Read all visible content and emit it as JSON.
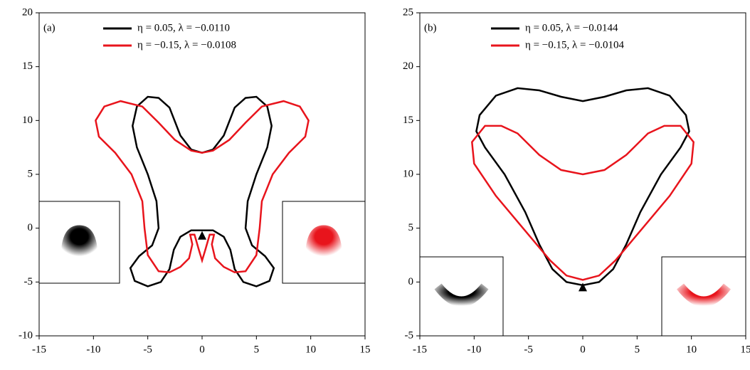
{
  "chart_data": [
    {
      "type": "line",
      "label": "(a)",
      "xlim": [
        -15,
        15
      ],
      "ylim": [
        -10,
        20
      ],
      "xticks": [
        -15,
        -10,
        -5,
        0,
        5,
        10,
        15
      ],
      "yticks": [
        -10,
        -5,
        0,
        5,
        10,
        15,
        20
      ],
      "marker": {
        "x": 0,
        "y": -0.8
      },
      "series": [
        {
          "name": "η = 0.05, λ = −0.0110",
          "color": "#000000",
          "x": [
            0,
            1,
            2,
            3,
            4,
            5,
            6,
            6.4,
            6,
            5,
            4.2,
            4,
            4.6,
            5.8,
            6.6,
            6.2,
            5,
            3.8,
            3,
            2.6,
            2,
            1,
            0,
            -1,
            -2,
            -2.6,
            -3,
            -3.8,
            -5,
            -6.2,
            -6.6,
            -5.8,
            -4.6,
            -4,
            -4.2,
            -5,
            -6,
            -6.4,
            -6,
            -5,
            -4,
            -3,
            -2,
            -1
          ],
          "y": [
            7,
            7.3,
            8.6,
            11.2,
            12.1,
            12.2,
            11.3,
            9.5,
            7.5,
            5,
            2.5,
            0,
            -1.6,
            -2.6,
            -3.7,
            -4.9,
            -5.4,
            -5,
            -3.8,
            -2,
            -0.8,
            -0.2,
            -0.2,
            -0.2,
            -0.8,
            -2,
            -3.8,
            -5,
            -5.4,
            -4.9,
            -3.7,
            -2.6,
            -1.6,
            0,
            2.5,
            5,
            7.5,
            9.5,
            11.3,
            12.2,
            12.1,
            11.2,
            8.6,
            7.3
          ]
        },
        {
          "name": "η = −0.15, λ = −0.0108",
          "color": "#e8141c",
          "x": [
            0,
            1,
            2.5,
            4,
            5.5,
            7.5,
            9,
            9.8,
            9.5,
            8,
            6.5,
            5.5,
            5.3,
            5,
            4,
            3,
            2,
            1.2,
            0.9,
            1.1,
            0.7,
            0.3,
            0,
            -0.3,
            -0.7,
            -1.1,
            -0.9,
            -1.2,
            -2,
            -3,
            -4,
            -5,
            -5.3,
            -5.5,
            -6.5,
            -8,
            -9.5,
            -9.8,
            -9,
            -7.5,
            -5.5,
            -4,
            -2.5,
            -1
          ],
          "y": [
            7,
            7.2,
            8.2,
            9.8,
            11.3,
            11.8,
            11.3,
            10,
            8.5,
            7,
            5,
            2.5,
            0,
            -2.5,
            -4,
            -4.1,
            -3.6,
            -2.8,
            -1.5,
            -0.6,
            -0.6,
            -2,
            -3,
            -2,
            -0.6,
            -0.6,
            -1.5,
            -2.8,
            -3.6,
            -4.1,
            -4,
            -2.5,
            0,
            2.5,
            5,
            7,
            8.5,
            10,
            11.3,
            11.8,
            11.3,
            9.8,
            8.2,
            7.2
          ]
        }
      ]
    },
    {
      "type": "line",
      "label": "(b)",
      "xlim": [
        -15,
        15
      ],
      "ylim": [
        -5,
        25
      ],
      "xticks": [
        -15,
        -10,
        -5,
        0,
        5,
        10,
        15
      ],
      "yticks": [
        -5,
        0,
        5,
        10,
        15,
        20,
        25
      ],
      "marker": {
        "x": 0,
        "y": -0.6
      },
      "series": [
        {
          "name": "η = 0.05, λ = −0.0144",
          "color": "#000000",
          "x": [
            0,
            2,
            4,
            6,
            8,
            9.5,
            9.8,
            9,
            7.2,
            5.3,
            4,
            2.8,
            1.5,
            0,
            -1.5,
            -2.8,
            -4,
            -5.3,
            -7.2,
            -9,
            -9.8,
            -9.5,
            -8,
            -6,
            -4,
            -2
          ],
          "y": [
            16.8,
            17.2,
            17.8,
            18,
            17.3,
            15.5,
            14,
            12.5,
            10,
            6.5,
            3.5,
            1.2,
            0,
            -0.3,
            0,
            1.2,
            3.5,
            6.5,
            10,
            12.5,
            14,
            15.5,
            17.3,
            18,
            17.8,
            17.2
          ]
        },
        {
          "name": "η = −0.15, λ = −0.0104",
          "color": "#e8141c",
          "x": [
            0,
            2,
            4,
            6,
            7.5,
            9,
            10.2,
            10,
            8,
            5.5,
            3,
            1.5,
            0,
            -1.5,
            -3,
            -5.5,
            -8,
            -10,
            -10.2,
            -9,
            -7.5,
            -6,
            -4,
            -2
          ],
          "y": [
            10,
            10.4,
            11.8,
            13.8,
            14.5,
            14.5,
            13,
            11,
            8,
            5,
            2,
            0.6,
            0.2,
            0.6,
            2,
            5,
            8,
            11,
            13,
            14.5,
            14.5,
            13.8,
            11.8,
            10.4
          ]
        }
      ]
    }
  ]
}
